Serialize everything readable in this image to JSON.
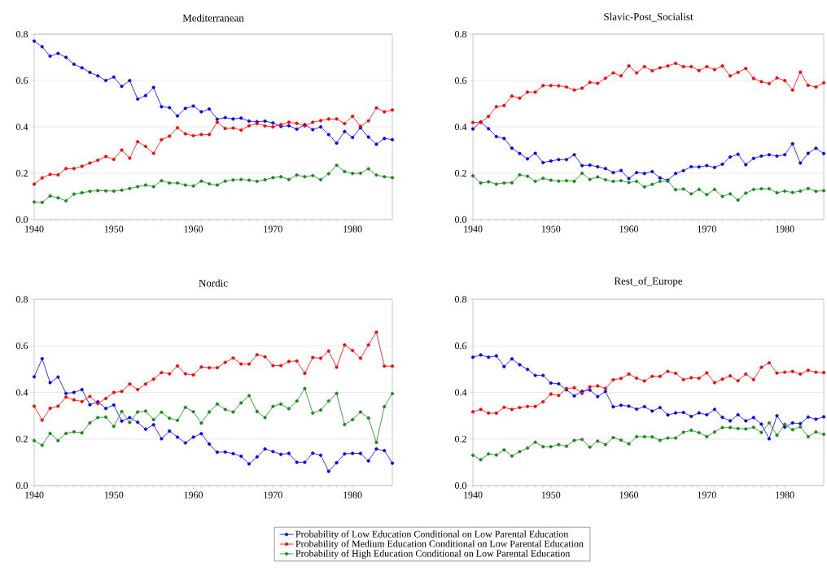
{
  "chart_data": [
    {
      "type": "line",
      "title": "Mediterranean",
      "x": [
        1940,
        1941,
        1942,
        1943,
        1944,
        1945,
        1946,
        1947,
        1948,
        1949,
        1950,
        1951,
        1952,
        1953,
        1954,
        1955,
        1956,
        1957,
        1958,
        1959,
        1960,
        1961,
        1962,
        1963,
        1964,
        1965,
        1966,
        1967,
        1968,
        1969,
        1970,
        1971,
        1972,
        1973,
        1974,
        1975,
        1976,
        1977,
        1978,
        1979,
        1980,
        1981,
        1982,
        1983,
        1984,
        1985
      ],
      "xlim": [
        1940,
        1985
      ],
      "xticks": [
        1940,
        1950,
        1960,
        1970,
        1980
      ],
      "ylim": [
        0,
        0.8
      ],
      "yticks": [
        {
          "value": 0,
          "label": "0.0"
        },
        {
          "value": 0.2,
          "label": "0.2"
        },
        {
          "value": 0.4,
          "label": "0.4"
        },
        {
          "value": 0.6,
          "label": "0.6"
        },
        {
          "value": 0.8,
          "label": "0.8"
        }
      ],
      "grid": "y",
      "marker": "circle",
      "line_style": "solid",
      "legend": "bottom",
      "series": [
        {
          "name": "Probability of Low Education Conditional on Low Parental Education",
          "color": "#0000ff",
          "values": [
            0.77,
            0.746,
            0.705,
            0.717,
            0.7,
            0.67,
            0.655,
            0.635,
            0.62,
            0.6,
            0.615,
            0.575,
            0.6,
            0.52,
            0.535,
            0.57,
            0.487,
            0.483,
            0.447,
            0.48,
            0.49,
            0.465,
            0.477,
            0.433,
            0.44,
            0.434,
            0.438,
            0.425,
            0.422,
            0.425,
            0.417,
            0.402,
            0.405,
            0.39,
            0.41,
            0.388,
            0.4,
            0.367,
            0.33,
            0.38,
            0.354,
            0.396,
            0.356,
            0.325,
            0.35,
            0.345
          ]
        },
        {
          "name": "Probability of Medium Education Conditional on Low Parental Education",
          "color": "#ff0000",
          "values": [
            0.153,
            0.18,
            0.195,
            0.193,
            0.22,
            0.22,
            0.23,
            0.244,
            0.256,
            0.272,
            0.26,
            0.3,
            0.265,
            0.336,
            0.316,
            0.286,
            0.345,
            0.36,
            0.396,
            0.37,
            0.362,
            0.367,
            0.367,
            0.42,
            0.393,
            0.395,
            0.386,
            0.405,
            0.414,
            0.404,
            0.4,
            0.41,
            0.42,
            0.415,
            0.404,
            0.42,
            0.427,
            0.434,
            0.434,
            0.414,
            0.446,
            0.402,
            0.426,
            0.482,
            0.465,
            0.473
          ]
        },
        {
          "name": "Probability of High Education Conditional on Low Parental Education",
          "color": "#158a15",
          "values": [
            0.076,
            0.074,
            0.102,
            0.094,
            0.081,
            0.11,
            0.116,
            0.122,
            0.125,
            0.124,
            0.123,
            0.127,
            0.134,
            0.142,
            0.149,
            0.142,
            0.168,
            0.158,
            0.158,
            0.149,
            0.145,
            0.166,
            0.154,
            0.149,
            0.166,
            0.171,
            0.173,
            0.17,
            0.165,
            0.172,
            0.181,
            0.185,
            0.173,
            0.192,
            0.185,
            0.19,
            0.172,
            0.198,
            0.234,
            0.207,
            0.199,
            0.2,
            0.219,
            0.192,
            0.185,
            0.181
          ]
        }
      ]
    },
    {
      "type": "line",
      "title": "Slavic-Post_Socialist",
      "x": [
        1940,
        1941,
        1942,
        1943,
        1944,
        1945,
        1946,
        1947,
        1948,
        1949,
        1950,
        1951,
        1952,
        1953,
        1954,
        1955,
        1956,
        1957,
        1958,
        1959,
        1960,
        1961,
        1962,
        1963,
        1964,
        1965,
        1966,
        1967,
        1968,
        1969,
        1970,
        1971,
        1972,
        1973,
        1974,
        1975,
        1976,
        1977,
        1978,
        1979,
        1980,
        1981,
        1982,
        1983,
        1984,
        1985
      ],
      "xlim": [
        1940,
        1985
      ],
      "xticks": [
        1940,
        1950,
        1960,
        1970,
        1980
      ],
      "ylim": [
        0,
        0.8
      ],
      "yticks": [
        {
          "value": 0,
          "label": "0.0"
        },
        {
          "value": 0.2,
          "label": "0.2"
        },
        {
          "value": 0.4,
          "label": "0.4"
        },
        {
          "value": 0.6,
          "label": "0.6"
        },
        {
          "value": 0.8,
          "label": "0.8"
        }
      ],
      "grid": "y",
      "marker": "circle",
      "line_style": "solid",
      "series": [
        {
          "color": "#0000ff",
          "values": [
            0.391,
            0.421,
            0.392,
            0.358,
            0.35,
            0.308,
            0.285,
            0.262,
            0.286,
            0.246,
            0.253,
            0.259,
            0.259,
            0.28,
            0.233,
            0.235,
            0.228,
            0.22,
            0.203,
            0.212,
            0.177,
            0.203,
            0.199,
            0.207,
            0.18,
            0.17,
            0.199,
            0.211,
            0.228,
            0.227,
            0.233,
            0.225,
            0.239,
            0.27,
            0.282,
            0.237,
            0.264,
            0.274,
            0.28,
            0.274,
            0.28,
            0.327,
            0.244,
            0.286,
            0.308,
            0.285
          ]
        },
        {
          "color": "#ff0000",
          "values": [
            0.419,
            0.419,
            0.445,
            0.487,
            0.492,
            0.533,
            0.524,
            0.55,
            0.55,
            0.578,
            0.578,
            0.577,
            0.572,
            0.559,
            0.567,
            0.592,
            0.588,
            0.61,
            0.633,
            0.62,
            0.663,
            0.633,
            0.66,
            0.642,
            0.655,
            0.663,
            0.674,
            0.66,
            0.66,
            0.643,
            0.66,
            0.647,
            0.663,
            0.62,
            0.635,
            0.652,
            0.609,
            0.595,
            0.587,
            0.611,
            0.6,
            0.559,
            0.636,
            0.579,
            0.572,
            0.59
          ]
        },
        {
          "color": "#158a15",
          "values": [
            0.189,
            0.158,
            0.163,
            0.153,
            0.158,
            0.159,
            0.193,
            0.187,
            0.165,
            0.178,
            0.17,
            0.166,
            0.168,
            0.165,
            0.2,
            0.173,
            0.184,
            0.172,
            0.165,
            0.168,
            0.16,
            0.165,
            0.141,
            0.152,
            0.165,
            0.166,
            0.129,
            0.132,
            0.111,
            0.13,
            0.108,
            0.13,
            0.1,
            0.111,
            0.084,
            0.114,
            0.13,
            0.133,
            0.133,
            0.116,
            0.123,
            0.117,
            0.123,
            0.134,
            0.122,
            0.125
          ]
        }
      ]
    },
    {
      "type": "line",
      "title": "Nordic",
      "x": [
        1940,
        1941,
        1942,
        1943,
        1944,
        1945,
        1946,
        1947,
        1948,
        1949,
        1950,
        1951,
        1952,
        1953,
        1954,
        1955,
        1956,
        1957,
        1958,
        1959,
        1960,
        1961,
        1962,
        1963,
        1964,
        1965,
        1966,
        1967,
        1968,
        1969,
        1970,
        1971,
        1972,
        1973,
        1974,
        1975,
        1976,
        1977,
        1978,
        1979,
        1980,
        1981,
        1982,
        1983,
        1984,
        1985
      ],
      "xlim": [
        1940,
        1985
      ],
      "xticks": [
        1940,
        1950,
        1960,
        1970,
        1980
      ],
      "ylim": [
        0,
        0.8
      ],
      "yticks": [
        {
          "value": 0,
          "label": "0.0"
        },
        {
          "value": 0.2,
          "label": "0.2"
        },
        {
          "value": 0.4,
          "label": "0.4"
        },
        {
          "value": 0.6,
          "label": "0.6"
        },
        {
          "value": 0.8,
          "label": "0.8"
        }
      ],
      "grid": "y",
      "marker": "circle",
      "line_style": "solid",
      "series": [
        {
          "color": "#0000ff",
          "values": [
            0.467,
            0.545,
            0.442,
            0.466,
            0.396,
            0.4,
            0.412,
            0.347,
            0.36,
            0.331,
            0.346,
            0.277,
            0.292,
            0.272,
            0.242,
            0.261,
            0.201,
            0.234,
            0.208,
            0.183,
            0.208,
            0.223,
            0.178,
            0.143,
            0.144,
            0.137,
            0.126,
            0.093,
            0.123,
            0.157,
            0.146,
            0.134,
            0.138,
            0.1,
            0.1,
            0.139,
            0.13,
            0.061,
            0.098,
            0.136,
            0.138,
            0.138,
            0.106,
            0.157,
            0.15,
            0.096
          ]
        },
        {
          "color": "#ff0000",
          "values": [
            0.341,
            0.281,
            0.332,
            0.341,
            0.38,
            0.368,
            0.361,
            0.383,
            0.352,
            0.374,
            0.4,
            0.404,
            0.436,
            0.412,
            0.436,
            0.457,
            0.485,
            0.48,
            0.514,
            0.48,
            0.475,
            0.509,
            0.506,
            0.506,
            0.529,
            0.548,
            0.522,
            0.522,
            0.562,
            0.553,
            0.515,
            0.515,
            0.533,
            0.535,
            0.482,
            0.55,
            0.547,
            0.578,
            0.508,
            0.604,
            0.58,
            0.547,
            0.604,
            0.659,
            0.513,
            0.513
          ]
        },
        {
          "color": "#158a15",
          "values": [
            0.193,
            0.173,
            0.224,
            0.193,
            0.224,
            0.231,
            0.226,
            0.269,
            0.292,
            0.294,
            0.254,
            0.318,
            0.271,
            0.316,
            0.32,
            0.283,
            0.315,
            0.289,
            0.28,
            0.336,
            0.317,
            0.268,
            0.316,
            0.35,
            0.327,
            0.316,
            0.355,
            0.386,
            0.318,
            0.292,
            0.34,
            0.35,
            0.33,
            0.363,
            0.417,
            0.311,
            0.324,
            0.363,
            0.396,
            0.262,
            0.283,
            0.316,
            0.29,
            0.185,
            0.339,
            0.395
          ]
        }
      ]
    },
    {
      "type": "line",
      "title": "Rest_of_Europe",
      "x": [
        1940,
        1941,
        1942,
        1943,
        1944,
        1945,
        1946,
        1947,
        1948,
        1949,
        1950,
        1951,
        1952,
        1953,
        1954,
        1955,
        1956,
        1957,
        1958,
        1959,
        1960,
        1961,
        1962,
        1963,
        1964,
        1965,
        1966,
        1967,
        1968,
        1969,
        1970,
        1971,
        1972,
        1973,
        1974,
        1975,
        1976,
        1977,
        1978,
        1979,
        1980,
        1981,
        1982,
        1983,
        1984,
        1985
      ],
      "xlim": [
        1940,
        1985
      ],
      "xticks": [
        1940,
        1950,
        1960,
        1970,
        1980
      ],
      "ylim": [
        0,
        0.8
      ],
      "yticks": [
        {
          "value": 0,
          "label": "0.0"
        },
        {
          "value": 0.2,
          "label": "0.2"
        },
        {
          "value": 0.4,
          "label": "0.4"
        },
        {
          "value": 0.6,
          "label": "0.6"
        },
        {
          "value": 0.8,
          "label": "0.8"
        }
      ],
      "grid": "y",
      "marker": "circle",
      "line_style": "solid",
      "series": [
        {
          "color": "#0000ff",
          "values": [
            0.551,
            0.561,
            0.551,
            0.557,
            0.511,
            0.544,
            0.519,
            0.499,
            0.473,
            0.473,
            0.44,
            0.437,
            0.411,
            0.385,
            0.405,
            0.41,
            0.382,
            0.404,
            0.338,
            0.345,
            0.341,
            0.328,
            0.339,
            0.32,
            0.335,
            0.303,
            0.312,
            0.314,
            0.297,
            0.312,
            0.304,
            0.327,
            0.293,
            0.278,
            0.304,
            0.278,
            0.292,
            0.264,
            0.201,
            0.3,
            0.251,
            0.269,
            0.266,
            0.294,
            0.285,
            0.295
          ]
        },
        {
          "color": "#ff0000",
          "values": [
            0.317,
            0.327,
            0.311,
            0.311,
            0.336,
            0.327,
            0.335,
            0.34,
            0.34,
            0.36,
            0.393,
            0.387,
            0.417,
            0.42,
            0.396,
            0.424,
            0.428,
            0.417,
            0.454,
            0.46,
            0.479,
            0.461,
            0.449,
            0.469,
            0.469,
            0.49,
            0.482,
            0.455,
            0.463,
            0.461,
            0.484,
            0.442,
            0.457,
            0.471,
            0.45,
            0.479,
            0.455,
            0.508,
            0.527,
            0.483,
            0.487,
            0.49,
            0.479,
            0.495,
            0.487,
            0.485
          ]
        },
        {
          "color": "#158a15",
          "values": [
            0.13,
            0.111,
            0.136,
            0.131,
            0.153,
            0.127,
            0.146,
            0.161,
            0.186,
            0.167,
            0.167,
            0.176,
            0.169,
            0.194,
            0.198,
            0.165,
            0.191,
            0.176,
            0.206,
            0.195,
            0.179,
            0.21,
            0.21,
            0.209,
            0.194,
            0.204,
            0.204,
            0.229,
            0.237,
            0.227,
            0.21,
            0.23,
            0.249,
            0.249,
            0.245,
            0.243,
            0.25,
            0.228,
            0.269,
            0.216,
            0.263,
            0.24,
            0.252,
            0.21,
            0.23,
            0.22
          ]
        }
      ]
    }
  ]
}
